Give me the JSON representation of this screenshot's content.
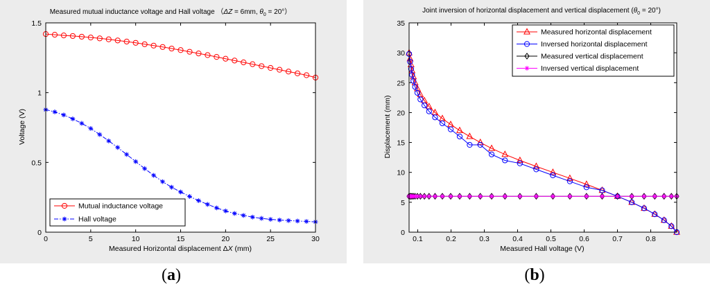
{
  "charts_meta": {
    "colors": {
      "figure_bg": "#ececec",
      "axes_bg": "#ffffff",
      "red": "#ff0000",
      "blue": "#0000ff",
      "black": "#000000",
      "magenta": "#ff00ff"
    }
  },
  "captions": {
    "a_open": "(",
    "a_letter": "a",
    "a_close": ")",
    "b_open": "(",
    "b_letter": "b",
    "b_close": ")"
  },
  "chart_data": [
    {
      "type": "line",
      "title": "Measured mutual inductance voltage and Hall voltage （ΔZ = 6mm, θ0 = 20°）",
      "title_parts": {
        "main": "Measured mutual inductance voltage and Hall voltage （",
        "dz": "Δ",
        "z": "Z",
        "eq": " = 6mm, ",
        "theta": "θ",
        "sub": "0",
        "tail": " = 20°）"
      },
      "xlabel": "Measured Horizontal displacement ΔX (mm)",
      "xlabel_parts": {
        "main": "Measured Horizontal displacement ",
        "delta": "Δ",
        "x": "X",
        "unit": " (mm)"
      },
      "ylabel": "Voltage (V)",
      "xlim": [
        0,
        30
      ],
      "ylim": [
        0,
        1.5
      ],
      "xticks": [
        0,
        5,
        10,
        15,
        20,
        25,
        30
      ],
      "xtick_labels": [
        "0",
        "5",
        "10",
        "15",
        "20",
        "25",
        "30"
      ],
      "yticks": [
        0,
        0.5,
        1,
        1.5
      ],
      "ytick_labels": [
        "0",
        "0.5",
        "1",
        "1.5"
      ],
      "legend_position": "bottom-left",
      "series": [
        {
          "name": "Mutual inductance voltage",
          "color": "#ff0000",
          "marker": "circle",
          "line": "solid",
          "x": [
            0,
            1,
            2,
            3,
            4,
            5,
            6,
            7,
            8,
            9,
            10,
            11,
            12,
            13,
            14,
            15,
            16,
            17,
            18,
            19,
            20,
            21,
            22,
            23,
            24,
            25,
            26,
            27,
            28,
            29,
            30
          ],
          "y": [
            1.42,
            1.415,
            1.41,
            1.406,
            1.401,
            1.395,
            1.389,
            1.382,
            1.374,
            1.366,
            1.357,
            1.347,
            1.337,
            1.327,
            1.316,
            1.305,
            1.293,
            1.281,
            1.269,
            1.256,
            1.243,
            1.23,
            1.217,
            1.204,
            1.19,
            1.177,
            1.164,
            1.151,
            1.138,
            1.125,
            1.108
          ]
        },
        {
          "name": "Hall voltage",
          "color": "#0000ff",
          "marker": "star",
          "line": "dashdot",
          "x": [
            0,
            1,
            2,
            3,
            4,
            5,
            6,
            7,
            8,
            9,
            10,
            11,
            12,
            13,
            14,
            15,
            16,
            17,
            18,
            19,
            20,
            21,
            22,
            23,
            24,
            25,
            26,
            27,
            28,
            29,
            30
          ],
          "y": [
            0.878,
            0.862,
            0.84,
            0.812,
            0.78,
            0.743,
            0.7,
            0.654,
            0.607,
            0.557,
            0.506,
            0.456,
            0.407,
            0.362,
            0.322,
            0.288,
            0.256,
            0.226,
            0.199,
            0.174,
            0.152,
            0.134,
            0.12,
            0.108,
            0.099,
            0.092,
            0.087,
            0.083,
            0.08,
            0.077,
            0.074
          ]
        }
      ]
    },
    {
      "type": "line",
      "title": "Joint inversion of horizontal displacement and vertical displacement (θ0 = 20°)",
      "title_parts": {
        "main": "Joint inversion of horizontal displacement and vertical displacement (",
        "theta": "θ",
        "sub": "0",
        "tail": " = 20°)"
      },
      "xlabel": "Measured Hall voltage (V)",
      "ylabel": "Displacement (mm)",
      "xlim": [
        0.074,
        0.878
      ],
      "ylim": [
        0,
        35
      ],
      "xticks": [
        0.1,
        0.2,
        0.3,
        0.4,
        0.5,
        0.6,
        0.7,
        0.8
      ],
      "xtick_labels": [
        "0.1",
        "0.2",
        "0.3",
        "0.4",
        "0.5",
        "0.6",
        "0.7",
        "0.8"
      ],
      "yticks": [
        0,
        5,
        10,
        15,
        20,
        25,
        30,
        35
      ],
      "ytick_labels": [
        "0",
        "5",
        "10",
        "15",
        "20",
        "25",
        "30",
        "35"
      ],
      "legend_position": "top-right",
      "series": [
        {
          "name": "Measured horizontal displacement",
          "color": "#ff0000",
          "marker": "triangle",
          "x": [
            0.074,
            0.077,
            0.08,
            0.083,
            0.087,
            0.092,
            0.099,
            0.108,
            0.12,
            0.134,
            0.152,
            0.174,
            0.199,
            0.226,
            0.256,
            0.288,
            0.322,
            0.362,
            0.407,
            0.456,
            0.506,
            0.557,
            0.607,
            0.654,
            0.7,
            0.743,
            0.78,
            0.812,
            0.84,
            0.862,
            0.878
          ],
          "y": [
            30,
            29,
            28,
            27,
            26,
            25,
            24,
            23,
            22,
            21,
            20,
            19,
            18,
            17,
            16,
            15,
            14,
            13,
            12,
            11,
            10,
            9,
            8,
            7,
            6,
            5,
            4,
            3,
            2,
            1,
            0
          ]
        },
        {
          "name": "Inversed horizontal displacement",
          "color": "#0000ff",
          "marker": "circle",
          "x": [
            0.074,
            0.077,
            0.08,
            0.083,
            0.087,
            0.092,
            0.099,
            0.108,
            0.12,
            0.134,
            0.152,
            0.174,
            0.199,
            0.226,
            0.256,
            0.288,
            0.322,
            0.362,
            0.407,
            0.456,
            0.506,
            0.557,
            0.607,
            0.654,
            0.7,
            0.743,
            0.78,
            0.812,
            0.84,
            0.862,
            0.878
          ],
          "y": [
            29.8,
            28.5,
            27.3,
            26.3,
            25.3,
            24.3,
            23.3,
            22.2,
            21.2,
            20.2,
            19.2,
            18.2,
            17.2,
            16.0,
            14.6,
            14.6,
            13.0,
            12.0,
            11.5,
            10.5,
            9.5,
            8.5,
            7.5,
            7.0,
            6.0,
            5.0,
            4.0,
            3.0,
            2.0,
            1.0,
            0.0
          ]
        },
        {
          "name": "Measured vertical displacement",
          "color": "#000000",
          "marker": "diamond",
          "x": [
            0.074,
            0.077,
            0.08,
            0.083,
            0.087,
            0.092,
            0.099,
            0.108,
            0.12,
            0.134,
            0.152,
            0.174,
            0.199,
            0.226,
            0.256,
            0.288,
            0.322,
            0.362,
            0.407,
            0.456,
            0.506,
            0.557,
            0.607,
            0.654,
            0.7,
            0.743,
            0.78,
            0.812,
            0.84,
            0.862,
            0.878
          ],
          "y": [
            6,
            6,
            6,
            6,
            6,
            6,
            6,
            6,
            6,
            6,
            6,
            6,
            6,
            6,
            6,
            6,
            6,
            6,
            6,
            6,
            6,
            6,
            6,
            6,
            6,
            6,
            6,
            6,
            6,
            6,
            6
          ]
        },
        {
          "name": "Inversed vertical displacement",
          "color": "#ff00ff",
          "marker": "star",
          "x": [
            0.074,
            0.077,
            0.08,
            0.083,
            0.087,
            0.092,
            0.099,
            0.108,
            0.12,
            0.134,
            0.152,
            0.174,
            0.199,
            0.226,
            0.256,
            0.288,
            0.322,
            0.362,
            0.407,
            0.456,
            0.506,
            0.557,
            0.607,
            0.654,
            0.7,
            0.743,
            0.78,
            0.812,
            0.84,
            0.862,
            0.878
          ],
          "y": [
            6,
            6,
            6,
            6,
            6,
            6,
            6,
            6,
            6,
            6,
            6,
            6,
            6,
            6,
            6,
            6,
            6,
            6,
            6,
            6,
            6,
            6,
            6,
            6,
            6,
            6,
            6,
            6,
            6,
            6,
            6
          ]
        }
      ]
    }
  ]
}
